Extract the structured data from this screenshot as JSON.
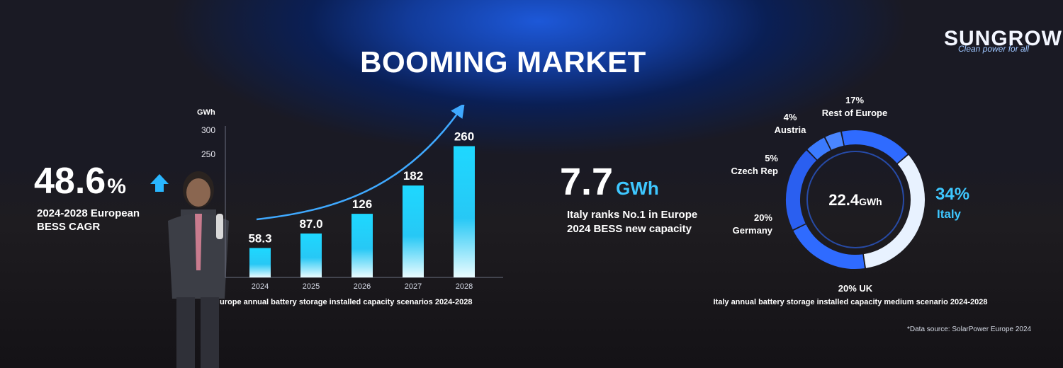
{
  "slide": {
    "title": "BOOMING MARKET",
    "logo_text": "SUNGROW",
    "logo_tagline": "Clean power for all",
    "source_note": "*Data source: SolarPower Europe 2024"
  },
  "cagr": {
    "value": "48.6",
    "unit": "%",
    "label_line1": "2024-2028 European",
    "label_line2": "BESS CAGR"
  },
  "italy_stat": {
    "value": "7.7",
    "unit": "GWh",
    "label_line1": "Italy ranks No.1 in Europe",
    "label_line2": "2024 BESS new capacity"
  },
  "chart_data": [
    {
      "type": "bar",
      "title": "urope annual battery storage installed capacity scenarios 2024-2028",
      "ylabel": "GWh",
      "categories": [
        "2024",
        "2025",
        "2026",
        "2027",
        "2028"
      ],
      "values": [
        58.3,
        87.0,
        126,
        182,
        260
      ],
      "value_labels": [
        "58.3",
        "87.0",
        "126",
        "182",
        "260"
      ],
      "yticks": [
        "300",
        "250"
      ],
      "ylim": [
        0,
        300
      ]
    },
    {
      "type": "pie",
      "title": "Italy annual battery storage installed capacity medium scenario 2024-2028",
      "center_value": "22.4",
      "center_unit": "GWh",
      "slices": [
        {
          "name": "Italy",
          "pct_label": "34%",
          "value": 34
        },
        {
          "name": "UK",
          "pct_label": "20%",
          "value": 20
        },
        {
          "name": "Germany",
          "pct_label": "20%",
          "value": 20
        },
        {
          "name": "Czech Rep",
          "pct_label": "5%",
          "value": 5
        },
        {
          "name": "Austria",
          "pct_label": "4%",
          "value": 4
        },
        {
          "name": "Rest of Europe",
          "pct_label": "17%",
          "value": 17
        }
      ]
    }
  ],
  "colors": {
    "accent": "#29c6ff",
    "bar_top": "#20d8ff",
    "ring": "#2f6bff",
    "ring_light": "#e8f2ff"
  }
}
